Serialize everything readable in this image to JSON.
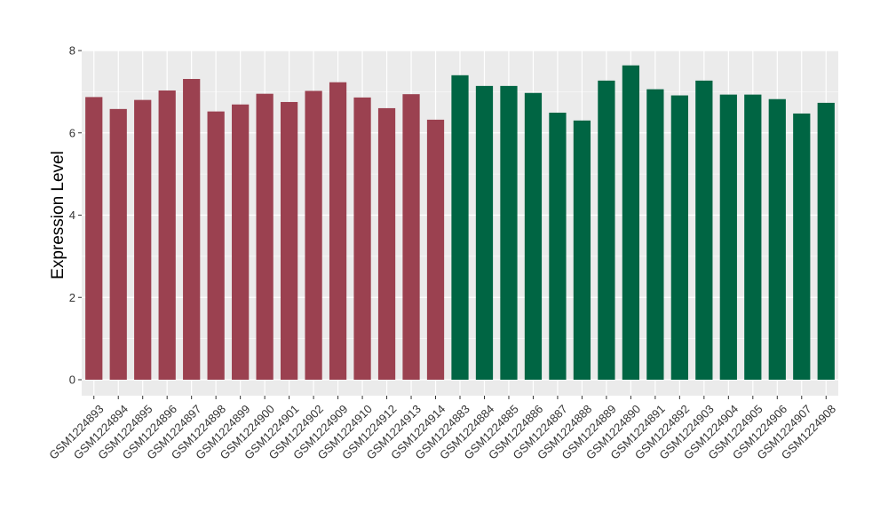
{
  "chart_data": {
    "type": "bar",
    "title": "",
    "xlabel": "",
    "ylabel": "Expression Level",
    "ylim": [
      0,
      8
    ],
    "yticks": [
      0,
      2,
      4,
      6,
      8
    ],
    "grid": true,
    "legend": "none",
    "colors": {
      "group_a": "#9b4150",
      "group_b": "#006543",
      "panel_bg": "#ebebeb",
      "grid": "#ffffff"
    },
    "categories": [
      "GSM1224893",
      "GSM1224894",
      "GSM1224895",
      "GSM1224896",
      "GSM1224897",
      "GSM1224898",
      "GSM1224899",
      "GSM1224900",
      "GSM1224901",
      "GSM1224902",
      "GSM1224909",
      "GSM1224910",
      "GSM1224912",
      "GSM1224913",
      "GSM1224914",
      "GSM1224883",
      "GSM1224884",
      "GSM1224885",
      "GSM1224886",
      "GSM1224887",
      "GSM1224888",
      "GSM1224889",
      "GSM1224890",
      "GSM1224891",
      "GSM1224892",
      "GSM1224903",
      "GSM1224904",
      "GSM1224905",
      "GSM1224906",
      "GSM1224907",
      "GSM1224908"
    ],
    "values": [
      6.87,
      6.58,
      6.8,
      7.03,
      7.31,
      6.52,
      6.69,
      6.95,
      6.75,
      7.02,
      7.23,
      6.86,
      6.6,
      6.94,
      6.32,
      7.4,
      7.14,
      7.14,
      6.97,
      6.49,
      6.3,
      7.27,
      7.64,
      7.06,
      6.91,
      7.27,
      6.93,
      6.93,
      6.82,
      6.47,
      6.73
    ],
    "groups": [
      "a",
      "a",
      "a",
      "a",
      "a",
      "a",
      "a",
      "a",
      "a",
      "a",
      "a",
      "a",
      "a",
      "a",
      "a",
      "b",
      "b",
      "b",
      "b",
      "b",
      "b",
      "b",
      "b",
      "b",
      "b",
      "b",
      "b",
      "b",
      "b",
      "b",
      "b"
    ]
  }
}
